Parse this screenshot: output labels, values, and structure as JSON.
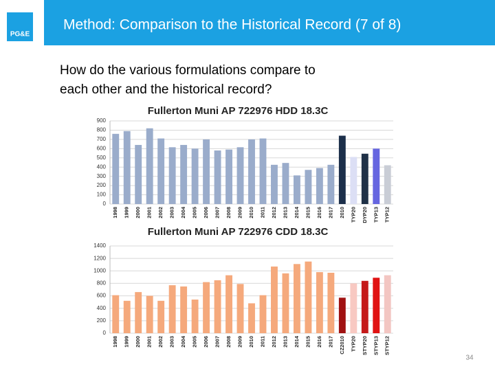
{
  "slide": {
    "title": "Method: Comparison to the Historical Record (7 of 8)",
    "question_lines": [
      "How do the various formulations compare to",
      "each other and the historical record?"
    ],
    "logo_text": "PG&E",
    "page_number": "34"
  },
  "chart_data": [
    {
      "type": "bar",
      "title": "Fullerton Muni AP 722976   HDD 18.3C",
      "categories": [
        "1998",
        "1999",
        "2000",
        "2001",
        "2002",
        "2003",
        "2004",
        "2005",
        "2006",
        "2007",
        "2008",
        "2009",
        "2010",
        "2011",
        "2012",
        "2013",
        "2014",
        "2015",
        "2016",
        "2017",
        "2010",
        "TYP20",
        "DYP20",
        "TYP13",
        "TYP12"
      ],
      "values": [
        760,
        790,
        640,
        820,
        710,
        615,
        640,
        600,
        700,
        580,
        590,
        615,
        700,
        710,
        425,
        445,
        310,
        370,
        390,
        425,
        740,
        510,
        545,
        600,
        420
      ],
      "colors": [
        "#9aaccb",
        "#9aaccb",
        "#9aaccb",
        "#9aaccb",
        "#9aaccb",
        "#9aaccb",
        "#9aaccb",
        "#9aaccb",
        "#9aaccb",
        "#9aaccb",
        "#9aaccb",
        "#9aaccb",
        "#9aaccb",
        "#9aaccb",
        "#9aaccb",
        "#9aaccb",
        "#9aaccb",
        "#9aaccb",
        "#9aaccb",
        "#9aaccb",
        "#1c2f4a",
        "#dcdff5",
        "#1f3147",
        "#6666e0",
        "#c9cdd6"
      ],
      "ylim": [
        0,
        900
      ],
      "yticks": [
        0,
        100,
        200,
        300,
        400,
        500,
        600,
        700,
        800,
        900
      ],
      "grid": true
    },
    {
      "type": "bar",
      "title": "Fullerton Muni AP 722976   CDD 18.3C",
      "categories": [
        "1998",
        "1999",
        "2000",
        "2001",
        "2002",
        "2003",
        "2004",
        "2005",
        "2006",
        "2007",
        "2008",
        "2009",
        "2010",
        "2011",
        "2012",
        "2013",
        "2014",
        "2015",
        "2016",
        "2017",
        "CZ2010",
        "TYP20",
        "STYP20",
        "STYP13",
        "STYP12"
      ],
      "values": [
        610,
        520,
        660,
        600,
        520,
        770,
        750,
        540,
        820,
        850,
        930,
        790,
        480,
        610,
        1070,
        960,
        1110,
        1150,
        980,
        970,
        570,
        800,
        840,
        890,
        930
      ],
      "colors": [
        "#f5a97c",
        "#f5a97c",
        "#f5a97c",
        "#f5a97c",
        "#f5a97c",
        "#f5a97c",
        "#f5a97c",
        "#f5a97c",
        "#f5a97c",
        "#f5a97c",
        "#f5a97c",
        "#f5a97c",
        "#f5a97c",
        "#f5a97c",
        "#f5a97c",
        "#f5a97c",
        "#f5a97c",
        "#f5a97c",
        "#f5a97c",
        "#f5a97c",
        "#a01212",
        "#f8c9c2",
        "#c41a1a",
        "#e01212",
        "#f3c6c2"
      ],
      "ylim": [
        0,
        1400
      ],
      "yticks": [
        0,
        200,
        400,
        600,
        800,
        1000,
        1200,
        1400
      ],
      "grid": true
    }
  ]
}
